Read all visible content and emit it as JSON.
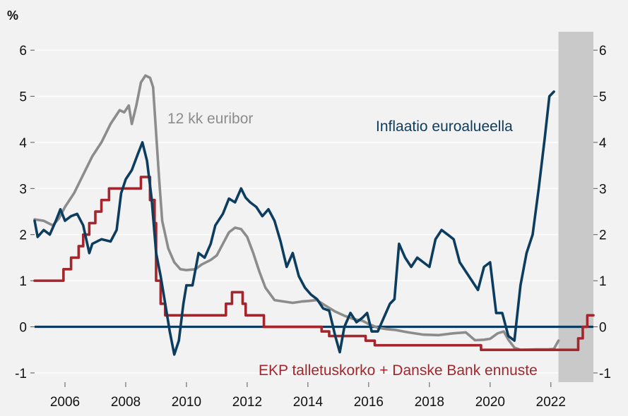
{
  "chart_data": {
    "type": "line",
    "unit_label": "%",
    "xlim": [
      2005.0,
      2023.4
    ],
    "ylim": [
      -1.2,
      6.4
    ],
    "y_ticks": [
      -1,
      0,
      1,
      2,
      3,
      4,
      5,
      6
    ],
    "x_ticks": [
      2006,
      2008,
      2010,
      2012,
      2014,
      2016,
      2018,
      2020,
      2022
    ],
    "grid": true,
    "forecast_shade": {
      "from": 2022.25,
      "to": 2023.4,
      "color": "#c9c9c9"
    },
    "zero_line_color": "#0c3c5e",
    "series": [
      {
        "name": "12 kk euribor",
        "color": "#8c8c8c",
        "label_color": "#8c8c8c",
        "points": [
          [
            2005.0,
            2.33
          ],
          [
            2005.3,
            2.3
          ],
          [
            2005.6,
            2.2
          ],
          [
            2005.8,
            2.35
          ],
          [
            2006.0,
            2.6
          ],
          [
            2006.3,
            2.9
          ],
          [
            2006.6,
            3.3
          ],
          [
            2006.9,
            3.7
          ],
          [
            2007.2,
            4.0
          ],
          [
            2007.5,
            4.4
          ],
          [
            2007.8,
            4.7
          ],
          [
            2007.95,
            4.65
          ],
          [
            2008.1,
            4.8
          ],
          [
            2008.2,
            4.4
          ],
          [
            2008.35,
            4.8
          ],
          [
            2008.5,
            5.3
          ],
          [
            2008.65,
            5.45
          ],
          [
            2008.8,
            5.4
          ],
          [
            2008.9,
            5.2
          ],
          [
            2009.0,
            4.2
          ],
          [
            2009.1,
            3.2
          ],
          [
            2009.2,
            2.3
          ],
          [
            2009.4,
            1.7
          ],
          [
            2009.6,
            1.4
          ],
          [
            2009.8,
            1.25
          ],
          [
            2010.0,
            1.23
          ],
          [
            2010.3,
            1.25
          ],
          [
            2010.5,
            1.35
          ],
          [
            2010.8,
            1.45
          ],
          [
            2011.0,
            1.55
          ],
          [
            2011.2,
            1.8
          ],
          [
            2011.4,
            2.05
          ],
          [
            2011.6,
            2.15
          ],
          [
            2011.8,
            2.12
          ],
          [
            2012.0,
            1.95
          ],
          [
            2012.2,
            1.6
          ],
          [
            2012.4,
            1.2
          ],
          [
            2012.6,
            0.85
          ],
          [
            2012.9,
            0.58
          ],
          [
            2013.2,
            0.55
          ],
          [
            2013.5,
            0.52
          ],
          [
            2013.8,
            0.55
          ],
          [
            2014.0,
            0.56
          ],
          [
            2014.3,
            0.58
          ],
          [
            2014.6,
            0.45
          ],
          [
            2014.9,
            0.33
          ],
          [
            2015.2,
            0.24
          ],
          [
            2015.5,
            0.17
          ],
          [
            2015.8,
            0.13
          ],
          [
            2016.0,
            0.06
          ],
          [
            2016.3,
            -0.02
          ],
          [
            2016.6,
            -0.05
          ],
          [
            2016.9,
            -0.07
          ],
          [
            2017.3,
            -0.12
          ],
          [
            2017.8,
            -0.17
          ],
          [
            2018.3,
            -0.18
          ],
          [
            2018.8,
            -0.14
          ],
          [
            2019.2,
            -0.12
          ],
          [
            2019.5,
            -0.29
          ],
          [
            2019.8,
            -0.28
          ],
          [
            2020.0,
            -0.26
          ],
          [
            2020.25,
            -0.14
          ],
          [
            2020.45,
            -0.1
          ],
          [
            2020.6,
            -0.28
          ],
          [
            2020.8,
            -0.45
          ],
          [
            2021.0,
            -0.5
          ],
          [
            2021.5,
            -0.49
          ],
          [
            2021.9,
            -0.49
          ],
          [
            2022.1,
            -0.48
          ],
          [
            2022.25,
            -0.3
          ]
        ]
      },
      {
        "name": "Inflaatio euroalueella",
        "color": "#0c3c5e",
        "label_color": "#0c3c5e",
        "points": [
          [
            2005.0,
            2.3
          ],
          [
            2005.1,
            1.95
          ],
          [
            2005.3,
            2.1
          ],
          [
            2005.5,
            2.0
          ],
          [
            2005.7,
            2.3
          ],
          [
            2005.85,
            2.55
          ],
          [
            2006.0,
            2.3
          ],
          [
            2006.2,
            2.4
          ],
          [
            2006.4,
            2.45
          ],
          [
            2006.6,
            2.2
          ],
          [
            2006.8,
            1.6
          ],
          [
            2006.9,
            1.8
          ],
          [
            2007.2,
            1.9
          ],
          [
            2007.5,
            1.85
          ],
          [
            2007.7,
            2.1
          ],
          [
            2007.85,
            2.9
          ],
          [
            2008.0,
            3.2
          ],
          [
            2008.2,
            3.4
          ],
          [
            2008.4,
            3.75
          ],
          [
            2008.55,
            4.0
          ],
          [
            2008.7,
            3.6
          ],
          [
            2008.85,
            2.8
          ],
          [
            2009.0,
            1.6
          ],
          [
            2009.15,
            1.1
          ],
          [
            2009.3,
            0.5
          ],
          [
            2009.45,
            -0.1
          ],
          [
            2009.6,
            -0.6
          ],
          [
            2009.75,
            -0.3
          ],
          [
            2009.9,
            0.5
          ],
          [
            2010.0,
            0.9
          ],
          [
            2010.2,
            0.9
          ],
          [
            2010.4,
            1.6
          ],
          [
            2010.6,
            1.5
          ],
          [
            2010.8,
            1.8
          ],
          [
            2010.95,
            2.2
          ],
          [
            2011.2,
            2.45
          ],
          [
            2011.4,
            2.78
          ],
          [
            2011.6,
            2.7
          ],
          [
            2011.8,
            3.0
          ],
          [
            2011.95,
            2.8
          ],
          [
            2012.1,
            2.7
          ],
          [
            2012.3,
            2.6
          ],
          [
            2012.5,
            2.4
          ],
          [
            2012.7,
            2.55
          ],
          [
            2012.9,
            2.3
          ],
          [
            2013.1,
            1.85
          ],
          [
            2013.3,
            1.3
          ],
          [
            2013.5,
            1.6
          ],
          [
            2013.7,
            1.1
          ],
          [
            2013.9,
            0.85
          ],
          [
            2014.1,
            0.7
          ],
          [
            2014.3,
            0.6
          ],
          [
            2014.5,
            0.4
          ],
          [
            2014.7,
            0.35
          ],
          [
            2014.9,
            -0.2
          ],
          [
            2015.05,
            -0.55
          ],
          [
            2015.2,
            0.0
          ],
          [
            2015.4,
            0.3
          ],
          [
            2015.6,
            0.1
          ],
          [
            2015.8,
            0.2
          ],
          [
            2015.95,
            0.3
          ],
          [
            2016.1,
            -0.1
          ],
          [
            2016.3,
            -0.1
          ],
          [
            2016.5,
            0.2
          ],
          [
            2016.7,
            0.5
          ],
          [
            2016.85,
            0.6
          ],
          [
            2017.0,
            1.8
          ],
          [
            2017.2,
            1.5
          ],
          [
            2017.4,
            1.3
          ],
          [
            2017.6,
            1.5
          ],
          [
            2017.8,
            1.4
          ],
          [
            2018.0,
            1.3
          ],
          [
            2018.2,
            1.9
          ],
          [
            2018.4,
            2.1
          ],
          [
            2018.6,
            2.0
          ],
          [
            2018.8,
            1.9
          ],
          [
            2019.0,
            1.4
          ],
          [
            2019.2,
            1.2
          ],
          [
            2019.4,
            1.0
          ],
          [
            2019.6,
            0.8
          ],
          [
            2019.8,
            1.3
          ],
          [
            2020.0,
            1.4
          ],
          [
            2020.2,
            0.3
          ],
          [
            2020.4,
            0.3
          ],
          [
            2020.6,
            -0.2
          ],
          [
            2020.8,
            -0.3
          ],
          [
            2021.0,
            0.9
          ],
          [
            2021.2,
            1.6
          ],
          [
            2021.4,
            2.0
          ],
          [
            2021.6,
            3.0
          ],
          [
            2021.8,
            4.1
          ],
          [
            2021.95,
            5.0
          ],
          [
            2022.1,
            5.1
          ]
        ]
      },
      {
        "name": "EKP talletuskorko + Danske Bank ennuste",
        "color": "#a4262c",
        "label_color": "#a4262c",
        "step": true,
        "points": [
          [
            2005.0,
            1.0
          ],
          [
            2005.95,
            1.25
          ],
          [
            2006.2,
            1.5
          ],
          [
            2006.45,
            1.75
          ],
          [
            2006.6,
            2.0
          ],
          [
            2006.8,
            2.25
          ],
          [
            2007.0,
            2.5
          ],
          [
            2007.2,
            2.75
          ],
          [
            2007.45,
            3.0
          ],
          [
            2008.5,
            3.25
          ],
          [
            2008.8,
            2.75
          ],
          [
            2008.95,
            2.25
          ],
          [
            2009.0,
            1.0
          ],
          [
            2009.15,
            0.5
          ],
          [
            2009.3,
            0.25
          ],
          [
            2011.3,
            0.5
          ],
          [
            2011.5,
            0.75
          ],
          [
            2011.85,
            0.5
          ],
          [
            2011.95,
            0.25
          ],
          [
            2012.55,
            0.0
          ],
          [
            2014.45,
            -0.1
          ],
          [
            2014.7,
            -0.2
          ],
          [
            2015.9,
            -0.3
          ],
          [
            2016.2,
            -0.4
          ],
          [
            2019.7,
            -0.5
          ],
          [
            2022.9,
            -0.25
          ],
          [
            2023.05,
            0.0
          ],
          [
            2023.2,
            0.25
          ]
        ]
      }
    ],
    "annotations": [
      {
        "text": "12 kk euribor",
        "series": 0
      },
      {
        "text": "Inflaatio euroalueella",
        "series": 1
      },
      {
        "text": "EKP talletuskorko + Danske Bank ennuste",
        "series": 2
      }
    ]
  }
}
